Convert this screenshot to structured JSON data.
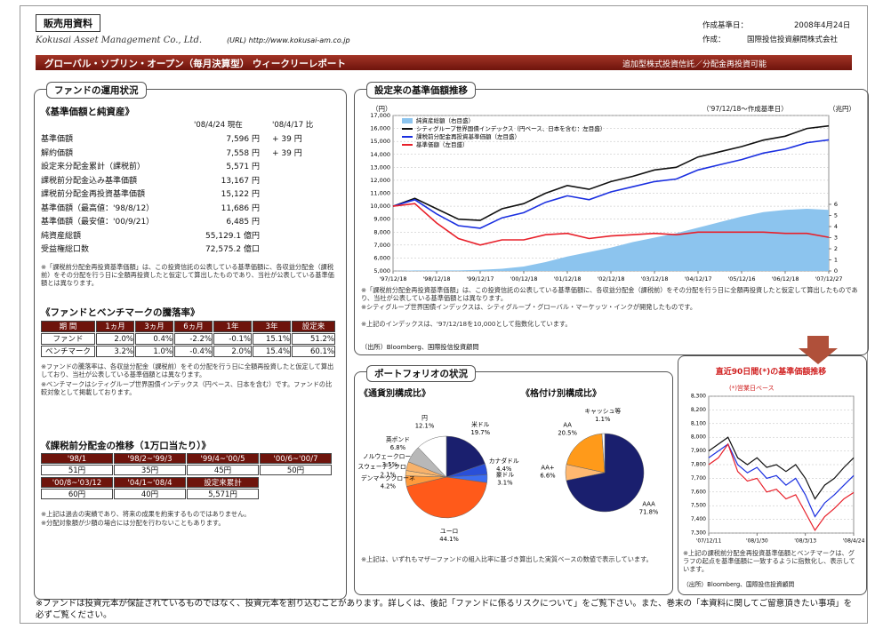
{
  "header": {
    "tag": "販売用資料",
    "company": "Kokusai Asset Management Co., Ltd.",
    "url": "(URL) http://www.kokusai-am.co.jp",
    "date_label": "作成基準日：",
    "date": "2008年4月24日",
    "author_label": "作成：",
    "author": "国際投信投資顧問株式会社",
    "title": "グローバル・ソブリン・オープン（毎月決算型） ウィークリーレポート",
    "title_note": "追加型株式投資信託／分配金再投資可能"
  },
  "fund_status": {
    "section": "ファンドの運用状況",
    "subtitle": "《基準価額と純資産》",
    "columns": [
      "'08/4/24 現在",
      "'08/4/17 比"
    ],
    "rows": [
      [
        "基準価額",
        "7,596 円",
        "+ 39 円"
      ],
      [
        "解約価額",
        "7,558 円",
        "+ 39 円"
      ],
      [
        "設定来分配金累計（課税前）",
        "5,571 円"
      ],
      [
        "課税前分配金込み基準価額",
        "13,167 円"
      ],
      [
        "課税前分配金再投資基準価額",
        "15,122 円"
      ],
      [
        "基準価額（最高値：'98/8/12）",
        "11,686 円"
      ],
      [
        "基準価額（最安値：'00/9/21）",
        "6,485 円"
      ],
      [
        "純資産総額",
        "55,129.1 億円"
      ],
      [
        "受益権総口数",
        "72,575.2 億口"
      ]
    ],
    "note": "※「課税前分配金再投資基準価額」は、この投資信託の公表している基準価額に、各収益分配金（課税前）をその分配を行う日に全額再投資したと仮定して算出したものであり、当社が公表している基準価額とは異なります。"
  },
  "performance": {
    "title": "《ファンドとベンチマークの騰落率》",
    "header": [
      "期 間",
      "1ヵ月",
      "3ヵ月",
      "6ヵ月",
      "1年",
      "3年",
      "設定来"
    ],
    "rows": [
      [
        "ファンド",
        "2.0%",
        "0.4%",
        "-2.2%",
        "-0.1%",
        "15.1%",
        "51.2%"
      ],
      [
        "ベンチマーク",
        "3.2%",
        "1.0%",
        "-0.4%",
        "2.0%",
        "15.4%",
        "60.1%"
      ]
    ],
    "notes": [
      "※ファンドの騰落率は、各収益分配金（課税前）をその分配を行う日に全額再投資したと仮定して算出しており、当社が公表している基準価額とは異なります。",
      "※ベンチマークはシティグループ世界国債インデックス（円ベース、日本を含む）です。ファンドの比較対象として掲載しております。"
    ]
  },
  "distribution": {
    "title": "《課税前分配金の推移（1万口当たり）》",
    "rows": [
      [
        [
          "'98/1",
          "51円"
        ],
        [
          "'98/2~'99/3",
          "35円"
        ],
        [
          "'99/4~'00/5",
          "45円"
        ],
        [
          "'00/6~'00/7",
          "50円"
        ]
      ],
      [
        [
          "'00/8~'03/12",
          "60円"
        ],
        [
          "'04/1~'08/4",
          "40円"
        ],
        [
          "設定来累計",
          "5,571円"
        ]
      ]
    ],
    "notes": [
      "※上記は過去の実績であり、将来の成果を約束するものではありません。",
      "※分配対象額が少額の場合には分配を行わないこともあります。"
    ]
  },
  "nav_chart": {
    "type": "line",
    "title": "設定来の基準価額推移",
    "period": "（'97/12/18～作成基準日）",
    "y_label": "（円）",
    "y2_label": "（兆円）",
    "categories": [
      "'97/12/18",
      null,
      "'98/12/18",
      null,
      "'99/12/17",
      null,
      "'00/12/18",
      null,
      "'01/12/18",
      null,
      "'02/12/18",
      null,
      "'03/12/18",
      null,
      "'04/12/17",
      null,
      "'05/12/16",
      null,
      "'06/12/18",
      null,
      "'07/12/27"
    ],
    "ylim": [
      5000,
      17000
    ],
    "yticks": [
      {
        "value": 5000,
        "label": "5,000"
      },
      {
        "value": 6000,
        "label": "6,000"
      },
      {
        "value": 7000,
        "label": "7,000"
      },
      {
        "value": 8000,
        "label": "8,000"
      },
      {
        "value": 9000,
        "label": "9,000"
      },
      {
        "value": 10000,
        "label": "10,000"
      },
      {
        "value": 11000,
        "label": "11,000"
      },
      {
        "value": 12000,
        "label": "12,000"
      },
      {
        "value": 13000,
        "label": "13,000"
      },
      {
        "value": 14000,
        "label": "14,000"
      },
      {
        "value": 15000,
        "label": "15,000"
      },
      {
        "value": 16000,
        "label": "16,000"
      },
      {
        "value": 17000,
        "label": "17,000"
      }
    ],
    "y2lim": [
      0,
      14
    ],
    "y2ticks": [
      0,
      1,
      2,
      3,
      4,
      5,
      6
    ],
    "grid": true,
    "series": [
      {
        "name": "純資産総額（右目盛）",
        "color": "#8cc4ee",
        "axis": "y2",
        "kind": "area",
        "values": [
          0,
          0.05,
          0.05,
          0.05,
          0.1,
          0.2,
          0.4,
          0.8,
          1.3,
          1.7,
          2.1,
          2.6,
          3.0,
          3.4,
          3.9,
          4.4,
          4.9,
          5.3,
          5.5,
          5.6,
          5.5
        ]
      },
      {
        "name": "シティグループ世界国債インデックス（円ベース、日本を含む：左目盛）",
        "color": "#111111",
        "values": [
          10000,
          10600,
          9800,
          9000,
          8900,
          9800,
          10200,
          11000,
          11600,
          11300,
          11900,
          12300,
          12800,
          13000,
          13800,
          14200,
          14600,
          15100,
          15400,
          16000,
          16200
        ]
      },
      {
        "name": "課税前分配金再投資基準価額（左目盛）",
        "color": "#1a2fe0",
        "values": [
          10000,
          10500,
          9400,
          8500,
          8300,
          9100,
          9500,
          10300,
          10800,
          10500,
          11100,
          11500,
          11900,
          12100,
          12800,
          13200,
          13600,
          14100,
          14400,
          14900,
          15122
        ]
      },
      {
        "name": "基準価額（左目盛）",
        "color": "#e8202a",
        "values": [
          10000,
          10200,
          8700,
          7500,
          7000,
          7400,
          7400,
          7800,
          7900,
          7500,
          7700,
          7800,
          7900,
          7800,
          8000,
          8000,
          8000,
          8000,
          7900,
          7900,
          7596
        ]
      }
    ],
    "notes": [
      "※「課税前分配金再投資基準価額」は、この投資信託の公表している基準価額に、各収益分配金（課税前）をその分配を行う日に全額再投資したと仮定して算出したものであり、当社が公表している基準価額とは異なります。",
      "※シティグループ世界国債インデックスは、シティグループ・グローバル・マーケッツ・インクが開発したものです。",
      "※上記のインデックスは、'97/12/18を10,000として指数化しています。"
    ],
    "source": "（出所）Bloomberg、国際投信投資顧問"
  },
  "portfolio": {
    "section": "ポートフォリオの状況",
    "currency_chart": {
      "type": "pie",
      "title": "《通貨別構成比》",
      "categories": [
        "米ドル",
        "カナダドル",
        "豪ドル",
        "ユーロ",
        "デンマーククローネ",
        "スウェーデンクローナ",
        "ノルウェークローネ",
        "英ポンド",
        "円"
      ],
      "values": [
        19.7,
        4.4,
        3.1,
        44.1,
        4.2,
        2.1,
        3.5,
        6.8,
        12.1
      ],
      "value_labels": [
        "19.7%",
        "4.4%",
        "3.1%",
        "44.1%",
        "4.2%",
        "2.1%",
        "3.5%",
        "6.8%",
        "12.1%"
      ],
      "colors": [
        "#1a1f6e",
        "#2a4fd8",
        "#3d6df0",
        "#ff5a1a",
        "#ff9a3c",
        "#ffc27a",
        "#f7b26b",
        "#b8b8b8",
        "#ffffff"
      ]
    },
    "rating_chart": {
      "type": "pie",
      "title": "《格付け別構成比》",
      "categories": [
        "AAA",
        "AA+",
        "AA",
        "キャッシュ等"
      ],
      "values": [
        71.8,
        6.6,
        20.5,
        1.1
      ],
      "value_labels": [
        "71.8%",
        "6.6%",
        "20.5%",
        "1.1%"
      ],
      "colors": [
        "#1a1f6e",
        "#ffb870",
        "#ff9a1a",
        "#ffffff"
      ]
    },
    "note": "※上記は、いずれもマザーファンドの組入比率に基づき算出した実質ベースの数値で表示しています。"
  },
  "recent_chart": {
    "type": "line",
    "title": "直近90日間(*)の基準価額推移",
    "subtitle": "(*)営業日ベース",
    "categories": [
      "'07/12/11",
      null,
      null,
      null,
      null,
      "'08/1/30",
      null,
      null,
      null,
      null,
      "'08/3/13",
      null,
      null,
      null,
      null,
      "'08/4/24"
    ],
    "ylim": [
      7300,
      8300
    ],
    "yticks": [
      {
        "value": 7300,
        "label": "7,300"
      },
      {
        "value": 7400,
        "label": "7,400"
      },
      {
        "value": 7500,
        "label": "7,500"
      },
      {
        "value": 7600,
        "label": "7,600"
      },
      {
        "value": 7700,
        "label": "7,700"
      },
      {
        "value": 7800,
        "label": "7,800"
      },
      {
        "value": 7900,
        "label": "7,900"
      },
      {
        "value": 8000,
        "label": "8,000"
      },
      {
        "value": 8100,
        "label": "8,100"
      },
      {
        "value": 8200,
        "label": "8,200"
      },
      {
        "value": 8300,
        "label": "8,300"
      }
    ],
    "grid": true,
    "series": [
      {
        "color": "#111111",
        "values": [
          7900,
          7950,
          8000,
          7850,
          7800,
          7850,
          7780,
          7800,
          7750,
          7800,
          7700,
          7550,
          7650,
          7700,
          7780,
          7850
        ]
      },
      {
        "color": "#1a2fe0",
        "values": [
          7850,
          7900,
          7950,
          7800,
          7740,
          7780,
          7700,
          7720,
          7650,
          7700,
          7580,
          7420,
          7520,
          7580,
          7650,
          7720
        ]
      },
      {
        "color": "#e8202a",
        "values": [
          7800,
          7850,
          7950,
          7750,
          7680,
          7700,
          7600,
          7620,
          7550,
          7580,
          7450,
          7320,
          7420,
          7480,
          7550,
          7596
        ]
      }
    ],
    "note": "※上記の課税前分配金再投資基準価額とベンチマークは、グラフの起点を基準価額に一致するように指数化し、表示しています。",
    "source": "（出所）Bloomberg、国際投信投資顧問"
  },
  "footer": "※ファンドは投資元本が保証されているものではなく、投資元本を割り込むことがあります。詳しくは、後記「ファンドに係るリスクについて」をご覧下さい。また、巻末の「本資料に関してご留意頂きたい事項」を必ずご覧ください。"
}
